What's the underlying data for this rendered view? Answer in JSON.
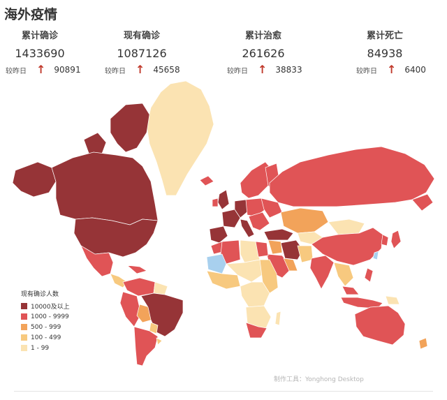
{
  "title": "海外疫情",
  "stats": [
    {
      "label": "累计确诊",
      "value": "1433690",
      "delta_label": "较昨日",
      "delta": "90891"
    },
    {
      "label": "现有确诊",
      "value": "1087126",
      "delta_label": "较昨日",
      "delta": "45658"
    },
    {
      "label": "累计治愈",
      "value": "261626",
      "delta_label": "较昨日",
      "delta": "38833"
    },
    {
      "label": "累计死亡",
      "value": "84938",
      "delta_label": "较昨日",
      "delta": "6400"
    }
  ],
  "legend": {
    "title": "现有确诊人数",
    "items": [
      {
        "label": "10000及以上",
        "color": "#963437"
      },
      {
        "label": "1000 - 9999",
        "color": "#e05456"
      },
      {
        "label": "500 - 999",
        "color": "#f2a35a"
      },
      {
        "label": "100 - 499",
        "color": "#f7c97f"
      },
      {
        "label": "1 - 99",
        "color": "#fbe3b2"
      }
    ]
  },
  "no_data_color": "#a8d0ee",
  "credit": "制作工具：Yonghong Desktop"
}
